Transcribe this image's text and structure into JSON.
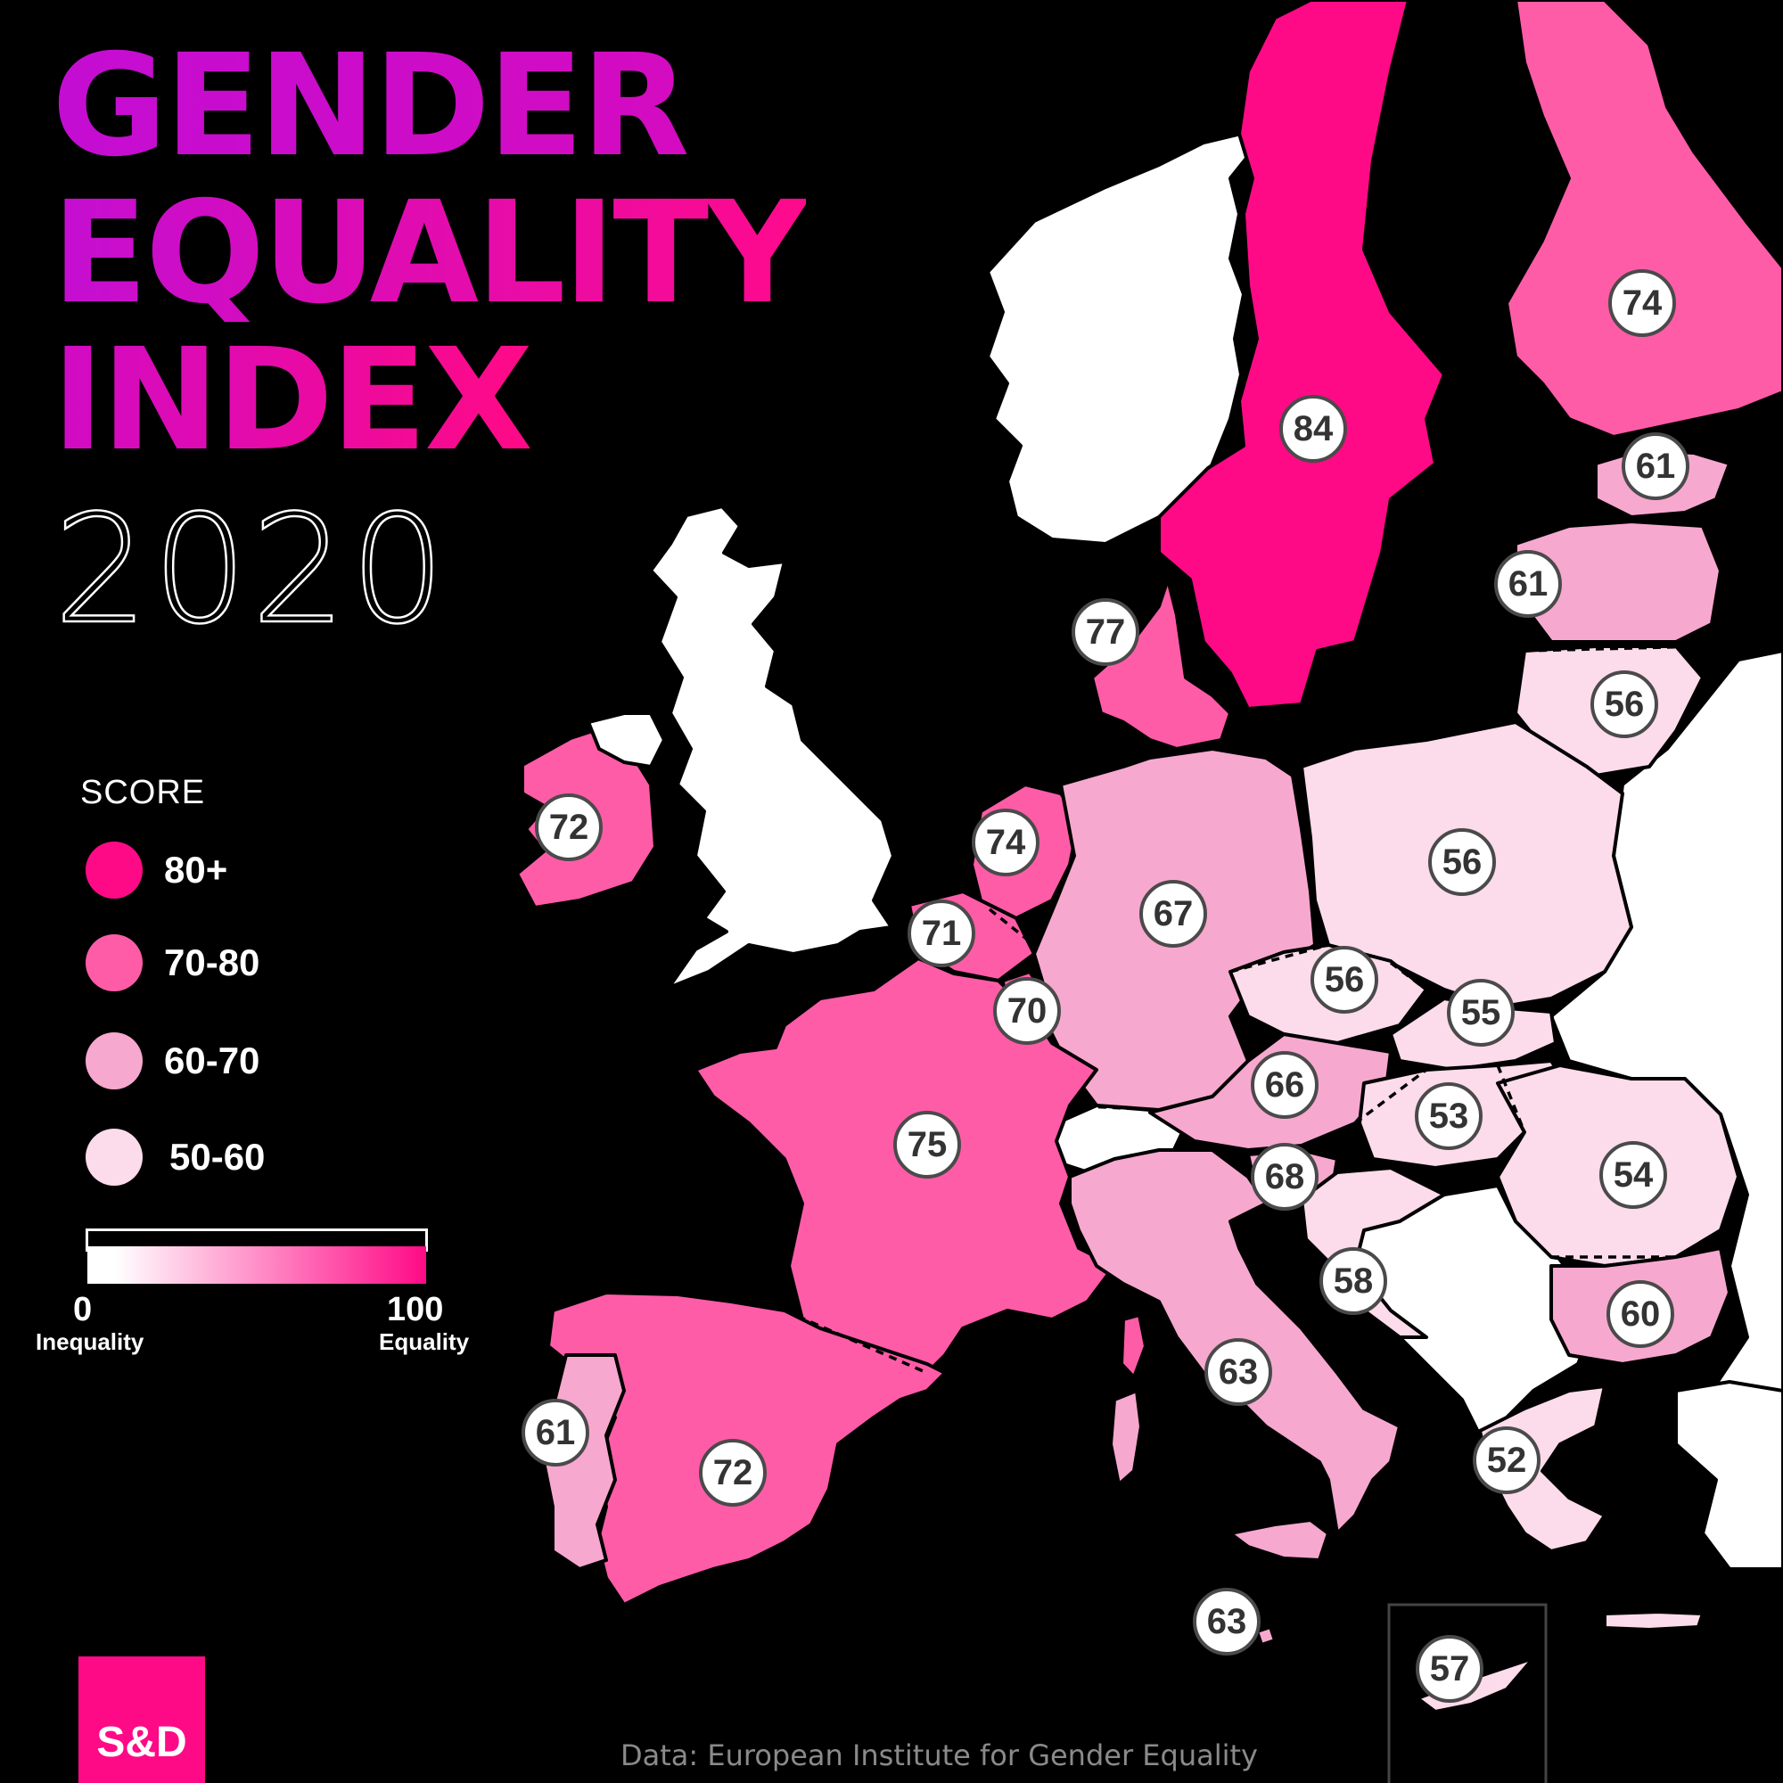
{
  "title": {
    "line1": "GENDER",
    "line2": "EQUALITY",
    "line3": "INDEX",
    "year": "2020"
  },
  "legend": {
    "title": "SCORE",
    "items": [
      {
        "label": "80+",
        "color": "#ff0a86"
      },
      {
        "label": "70-80",
        "color": "#ff5ca8"
      },
      {
        "label": "60-70",
        "color": "#f7a8cf"
      },
      {
        "label": "50-60",
        "color": "#fcdbea"
      }
    ],
    "scale": {
      "min_value": "0",
      "min_caption": "Inequality",
      "max_value": "100",
      "max_caption": "Equality",
      "gradient_start": "#ffffff",
      "gradient_end": "#ff0a86"
    }
  },
  "colors": {
    "background": "#000000",
    "non_member": "#ffffff",
    "border_line": "#000000"
  },
  "scores": [
    {
      "id": "sweden",
      "value": "84",
      "band": "80+"
    },
    {
      "id": "finland",
      "value": "74",
      "band": "70-80"
    },
    {
      "id": "estonia",
      "value": "61",
      "band": "60-70"
    },
    {
      "id": "latvia",
      "value": "61",
      "band": "60-70"
    },
    {
      "id": "lithuania",
      "value": "56",
      "band": "50-60"
    },
    {
      "id": "denmark",
      "value": "77",
      "band": "70-80"
    },
    {
      "id": "ireland",
      "value": "72",
      "band": "70-80"
    },
    {
      "id": "netherlands",
      "value": "74",
      "band": "70-80"
    },
    {
      "id": "belgium",
      "value": "71",
      "band": "70-80"
    },
    {
      "id": "luxembourg",
      "value": "70",
      "band": "70-80"
    },
    {
      "id": "germany",
      "value": "67",
      "band": "60-70"
    },
    {
      "id": "poland",
      "value": "56",
      "band": "50-60"
    },
    {
      "id": "czechia",
      "value": "56",
      "band": "50-60"
    },
    {
      "id": "slovakia",
      "value": "55",
      "band": "50-60"
    },
    {
      "id": "austria",
      "value": "66",
      "band": "60-70"
    },
    {
      "id": "hungary",
      "value": "53",
      "band": "50-60"
    },
    {
      "id": "romania",
      "value": "54",
      "band": "50-60"
    },
    {
      "id": "slovenia",
      "value": "68",
      "band": "60-70"
    },
    {
      "id": "croatia",
      "value": "58",
      "band": "50-60"
    },
    {
      "id": "bulgaria",
      "value": "60",
      "band": "60-70"
    },
    {
      "id": "france",
      "value": "75",
      "band": "70-80"
    },
    {
      "id": "italy",
      "value": "63",
      "band": "60-70"
    },
    {
      "id": "spain",
      "value": "72",
      "band": "70-80"
    },
    {
      "id": "portugal",
      "value": "61",
      "band": "60-70"
    },
    {
      "id": "greece",
      "value": "52",
      "band": "50-60"
    },
    {
      "id": "malta",
      "value": "63",
      "band": "60-70"
    },
    {
      "id": "cyprus",
      "value": "57",
      "band": "50-60"
    }
  ],
  "logo": "S&D",
  "source": "Data: European Institute for Gender Equality"
}
